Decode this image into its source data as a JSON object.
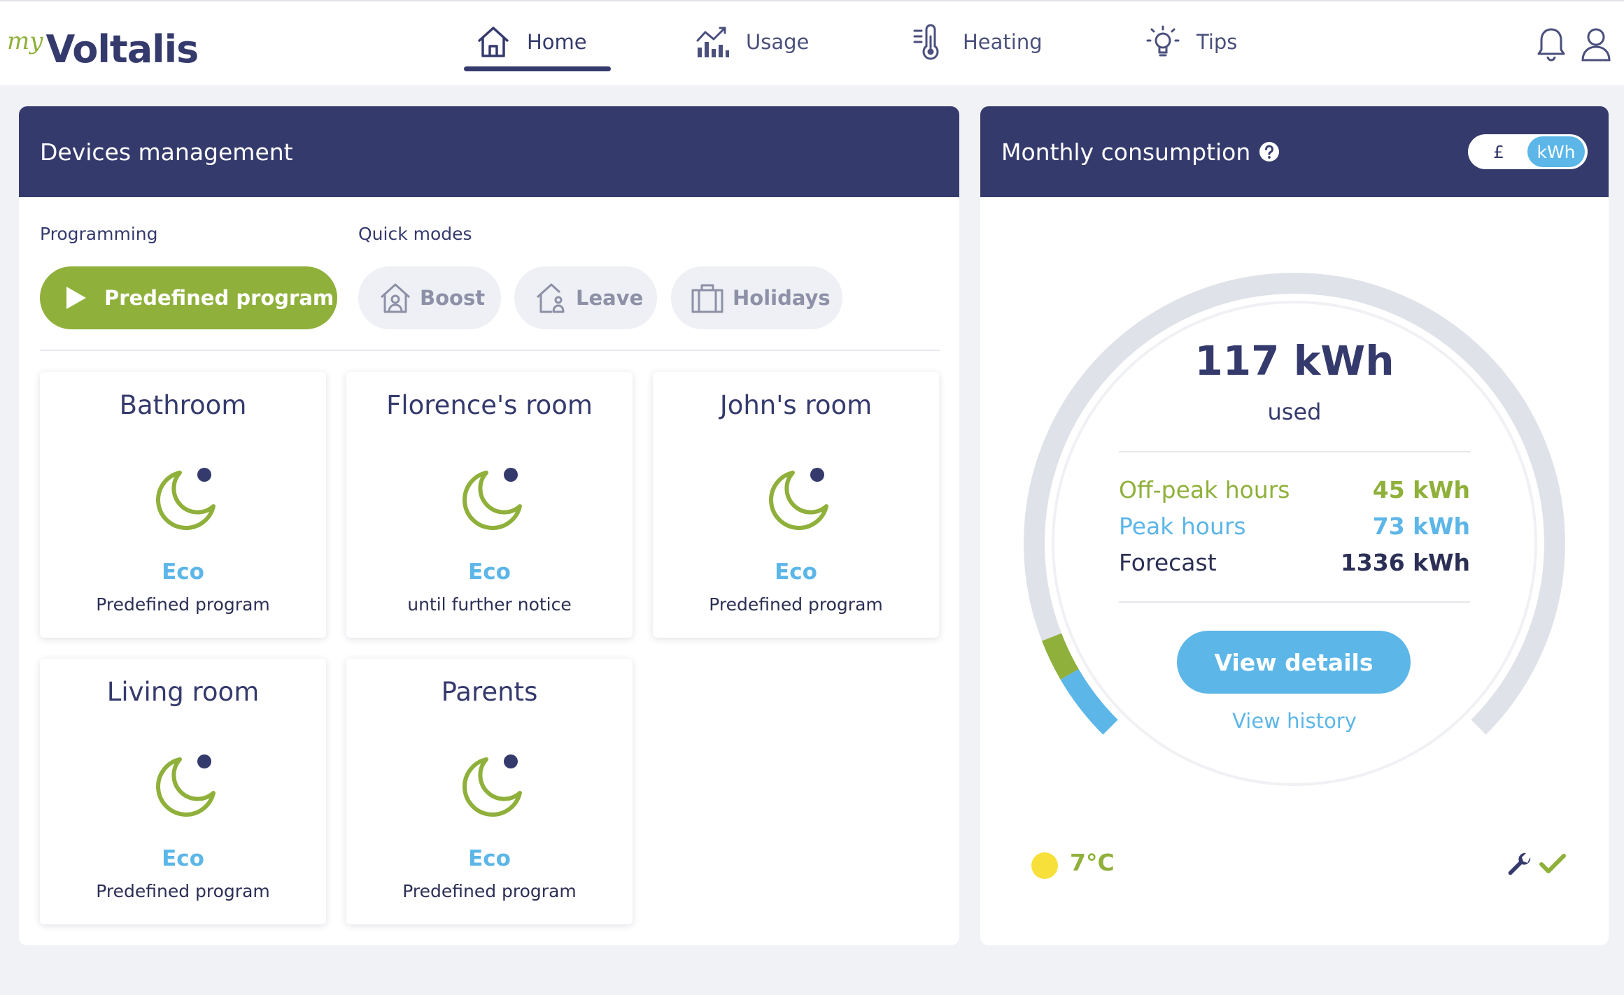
{
  "brand": {
    "prefix": "my",
    "name": "Voltalis"
  },
  "nav": [
    {
      "label": "Home",
      "icon": "home-icon",
      "active": true
    },
    {
      "label": "Usage",
      "icon": "chart-icon",
      "active": false
    },
    {
      "label": "Heating",
      "icon": "thermometer-icon",
      "active": false
    },
    {
      "label": "Tips",
      "icon": "lightbulb-icon",
      "active": false
    }
  ],
  "header_icons": [
    "bell-icon",
    "user-icon"
  ],
  "devices": {
    "title": "Devices management",
    "programming_label": "Programming",
    "quick_modes_label": "Quick modes",
    "program_button": "Predefined program",
    "quick_modes": [
      {
        "label": "Boost",
        "icon": "boost-icon"
      },
      {
        "label": "Leave",
        "icon": "leave-icon"
      },
      {
        "label": "Holidays",
        "icon": "suitcase-icon"
      }
    ],
    "rooms": [
      {
        "name": "Bathroom",
        "mode": "Eco",
        "status": "Predefined program",
        "icon": "moon-icon"
      },
      {
        "name": "Florence's room",
        "mode": "Eco",
        "status": "until further notice",
        "icon": "moon-icon"
      },
      {
        "name": "John's room",
        "mode": "Eco",
        "status": "Predefined program",
        "icon": "moon-icon"
      },
      {
        "name": "Living room",
        "mode": "Eco",
        "status": "Predefined program",
        "icon": "moon-icon"
      },
      {
        "name": "Parents",
        "mode": "Eco",
        "status": "Predefined program",
        "icon": "moon-icon"
      }
    ]
  },
  "consumption": {
    "title": "Monthly consumption",
    "help_icon": "question-circle-icon",
    "unit_toggle": {
      "options": [
        "£",
        "kWh"
      ],
      "selected": "kWh"
    },
    "used_value": "117 kWh",
    "used_label": "used",
    "rows": [
      {
        "label": "Off-peak hours",
        "value": "45 kWh",
        "color": "#8fb03a"
      },
      {
        "label": "Peak hours",
        "value": "73 kWh",
        "color": "#5cb6e8"
      },
      {
        "label": "Forecast",
        "value": "1336 kWh",
        "color": "#2c2f55"
      }
    ],
    "gauge": {
      "offpeak_kwh": 45,
      "peak_kwh": 73,
      "forecast_kwh": 1336
    },
    "details_button": "View details",
    "history_link": "View history",
    "temperature": "7°C",
    "weather_icon": "sun-icon",
    "status_icons": [
      "wrench-icon",
      "check-icon"
    ]
  },
  "colors": {
    "navy": "#353a6d",
    "green": "#8fb03a",
    "blue": "#5cb6e8",
    "background": "#f1f2f6",
    "sun": "#f7e03a"
  }
}
